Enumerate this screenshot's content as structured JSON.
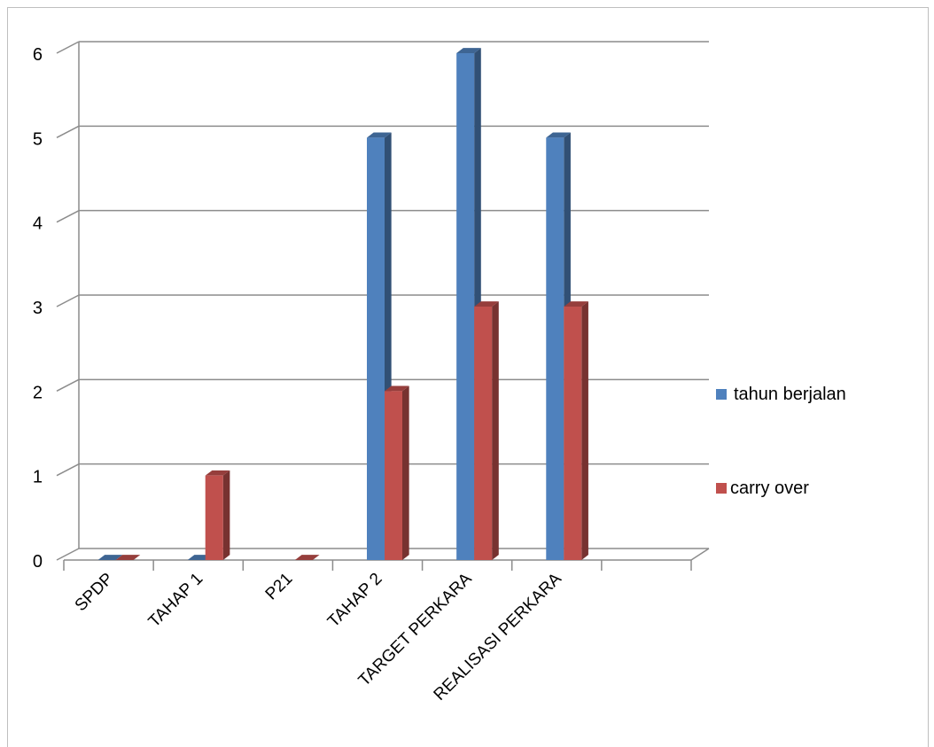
{
  "chart_data": {
    "type": "bar",
    "categories": [
      "SPDP",
      "TAHAP 1",
      "P21",
      "TAHAP 2",
      "TARGET PERKARA",
      "REALISASI PERKARA",
      ""
    ],
    "series": [
      {
        "name": "tahun berjalan",
        "values": [
          0,
          0,
          null,
          5,
          6,
          5,
          null
        ],
        "color": "#4F81BD"
      },
      {
        "name": "carry over",
        "values": [
          0,
          1,
          0,
          2,
          3,
          3,
          null
        ],
        "color": "#C0504D"
      }
    ],
    "yticks": [
      "0",
      "1",
      "2",
      "3",
      "4",
      "5",
      "6"
    ],
    "ylim": [
      0,
      6
    ],
    "grid": true,
    "legend_position": "right",
    "style": "3d-clustered-column"
  }
}
